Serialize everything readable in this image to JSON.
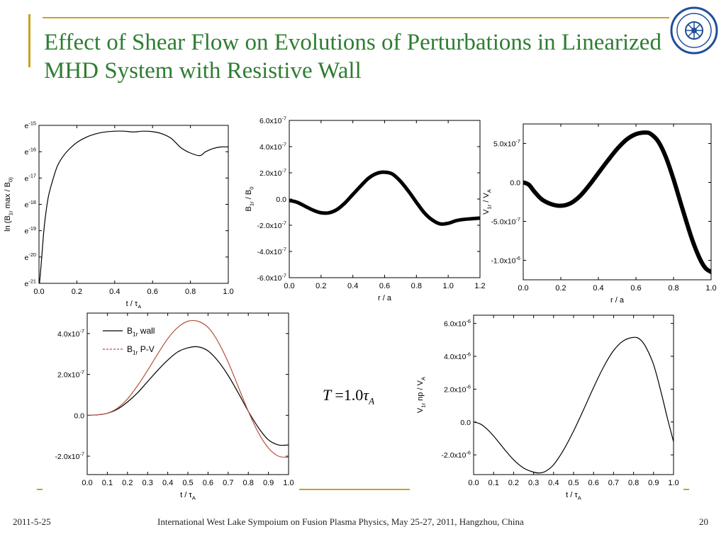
{
  "slide": {
    "title": "Effect of Shear Flow on Evolutions of Perturbations in Linearized MHD System with Resistive Wall",
    "formula": {
      "lhs": "T",
      "eq": "=1.0",
      "tau": "τ",
      "sub": "A"
    },
    "footer": {
      "date": "2011-5-25",
      "conference": "International West Lake Sympoium on Fusion Plasma Physics, May 25-27, 2011, Hangzhou, China",
      "page": "20"
    },
    "colors": {
      "title": "#2e7d32",
      "accent": "#c9a227",
      "curve": "#000000",
      "curve2": "#b5523f"
    },
    "logo_icon": "university-seal-icon"
  },
  "chart_data": [
    {
      "type": "line",
      "xlabel": "t / τ_A",
      "ylabel": "ln (B_1r max / B_0)",
      "xlim": [
        0,
        1.0
      ],
      "ylim": [
        -21,
        -15
      ],
      "ylog_e": true,
      "xticks": [
        "0.0",
        "0.2",
        "0.4",
        "0.6",
        "0.8",
        "1.0"
      ],
      "yticks": [
        "e^-15",
        "e^-16",
        "e^-17",
        "e^-18",
        "e^-19",
        "e^-20",
        "e^-21"
      ],
      "series": [
        {
          "x": [
            0.0,
            0.01,
            0.02,
            0.03,
            0.05,
            0.08,
            0.1,
            0.13,
            0.16,
            0.2,
            0.25,
            0.3,
            0.35,
            0.4,
            0.45,
            0.5,
            0.55,
            0.6,
            0.65,
            0.7,
            0.75,
            0.8,
            0.85,
            0.88,
            0.92,
            0.96,
            1.0
          ],
          "values": [
            -21.2,
            -20.4,
            -19.5,
            -18.7,
            -17.7,
            -16.9,
            -16.5,
            -16.15,
            -15.9,
            -15.65,
            -15.45,
            -15.32,
            -15.25,
            -15.22,
            -15.22,
            -15.25,
            -15.22,
            -15.24,
            -15.32,
            -15.5,
            -15.85,
            -16.05,
            -16.15,
            -16.0,
            -15.88,
            -15.82,
            -15.82
          ],
          "linewidth": "thin"
        }
      ]
    },
    {
      "type": "line",
      "xlabel": "r / a",
      "ylabel": "B_1r / B_0",
      "xlim": [
        0,
        1.2
      ],
      "ylim": [
        -6e-07,
        6e-07
      ],
      "xticks": [
        "0.0",
        "0.2",
        "0.4",
        "0.6",
        "0.8",
        "1.0",
        "1.2"
      ],
      "yticks": [
        "6.0x10^-7",
        "4.0x10^-7",
        "2.0x10^-7",
        "0.0",
        "-2.0x10^-7",
        "-4.0x10^-7",
        "-6.0x10^-7"
      ],
      "series": [
        {
          "x": [
            0.0,
            0.05,
            0.1,
            0.15,
            0.2,
            0.25,
            0.3,
            0.35,
            0.4,
            0.45,
            0.5,
            0.55,
            0.6,
            0.65,
            0.7,
            0.75,
            0.8,
            0.85,
            0.9,
            0.95,
            1.0,
            1.05,
            1.1,
            1.15,
            1.2
          ],
          "values": [
            -1e-08,
            -2.5e-08,
            -5.5e-08,
            -8.5e-08,
            -1.05e-07,
            -1.05e-07,
            -8e-08,
            -3e-08,
            3.5e-08,
            1e-07,
            1.6e-07,
            1.95e-07,
            2.05e-07,
            1.9e-07,
            1.35e-07,
            6e-08,
            -2.5e-08,
            -1.05e-07,
            -1.6e-07,
            -1.9e-07,
            -1.85e-07,
            -1.65e-07,
            -1.55e-07,
            -1.5e-07,
            -1.45e-07
          ],
          "linewidth": "thick"
        }
      ]
    },
    {
      "type": "line",
      "xlabel": "r / a",
      "ylabel": "V_1r / V_A",
      "xlim": [
        0,
        1.0
      ],
      "ylim": [
        -1.25e-06,
        7.5e-07
      ],
      "xticks": [
        "0.0",
        "0.2",
        "0.4",
        "0.6",
        "0.8",
        "1.0"
      ],
      "yticks": [
        "5.0x10^-7",
        "0.0",
        "-5.0x10^-7",
        "-1.0x10^-6"
      ],
      "series": [
        {
          "x": [
            0.0,
            0.03,
            0.06,
            0.1,
            0.15,
            0.2,
            0.25,
            0.3,
            0.35,
            0.4,
            0.45,
            0.5,
            0.55,
            0.6,
            0.65,
            0.68,
            0.72,
            0.76,
            0.8,
            0.85,
            0.9,
            0.94,
            0.97,
            1.0
          ],
          "values": [
            0.0,
            -3e-08,
            -1.2e-07,
            -2.2e-07,
            -2.8e-07,
            -3e-07,
            -2.7e-07,
            -1.8e-07,
            -4e-08,
            1.2e-07,
            2.8e-07,
            4.3e-07,
            5.5e-07,
            6.2e-07,
            6.4e-07,
            6.2e-07,
            5.2e-07,
            3.2e-07,
            4e-08,
            -3.6e-07,
            -7.4e-07,
            -9.8e-07,
            -1.1e-06,
            -1.15e-06
          ],
          "linewidth": "thick"
        }
      ]
    },
    {
      "type": "line",
      "xlabel": "t / τ_A",
      "xlim": [
        0,
        1.0
      ],
      "ylim": [
        -2.9e-07,
        5e-07
      ],
      "xticks": [
        "0.0",
        "0.1",
        "0.2",
        "0.3",
        "0.4",
        "0.5",
        "0.6",
        "0.7",
        "0.8",
        "0.9",
        "1.0"
      ],
      "yticks": [
        "4.0x10^-7",
        "2.0x10^-7",
        "0.0",
        "-2.0x10^-7"
      ],
      "legend": "top-left",
      "series": [
        {
          "name": "B_1r wall",
          "style": "solid",
          "color": "#000000",
          "x": [
            0.0,
            0.05,
            0.1,
            0.15,
            0.2,
            0.25,
            0.3,
            0.35,
            0.4,
            0.45,
            0.5,
            0.55,
            0.6,
            0.65,
            0.7,
            0.75,
            0.8,
            0.85,
            0.9,
            0.95,
            1.0
          ],
          "values": [
            0.0,
            2e-09,
            1e-08,
            3e-08,
            6.5e-08,
            1.1e-07,
            1.65e-07,
            2.2e-07,
            2.7e-07,
            3.1e-07,
            3.3e-07,
            3.35e-07,
            3.15e-07,
            2.65e-07,
            1.95e-07,
            1.1e-07,
            2e-08,
            -6e-08,
            -1.2e-07,
            -1.45e-07,
            -1.45e-07
          ]
        },
        {
          "name": "B_1r P-V",
          "style": "dashed",
          "color": "#b5523f",
          "x": [
            0.0,
            0.05,
            0.1,
            0.15,
            0.2,
            0.25,
            0.3,
            0.35,
            0.4,
            0.45,
            0.5,
            0.55,
            0.6,
            0.65,
            0.7,
            0.75,
            0.8,
            0.85,
            0.9,
            0.95,
            1.0
          ],
          "values": [
            0.0,
            2e-09,
            1e-08,
            3.5e-08,
            8e-08,
            1.45e-07,
            2.2e-07,
            3e-07,
            3.75e-07,
            4.3e-07,
            4.6e-07,
            4.6e-07,
            4.3e-07,
            3.6e-07,
            2.6e-07,
            1.4e-07,
            2e-08,
            -8.5e-08,
            -1.6e-07,
            -2e-07,
            -2.05e-07
          ]
        }
      ]
    },
    {
      "type": "line",
      "xlabel": "t / τ_A",
      "ylabel": "V_1r np / V_A",
      "xlim": [
        0,
        1.0
      ],
      "ylim": [
        -3.2e-06,
        6.5e-06
      ],
      "xticks": [
        "0.0",
        "0.1",
        "0.2",
        "0.3",
        "0.4",
        "0.5",
        "0.6",
        "0.7",
        "0.8",
        "0.9",
        "1.0"
      ],
      "yticks": [
        "6.0x10^-6",
        "4.0x10^-6",
        "2.0x10^-6",
        "0.0",
        "-2.0x10^-6"
      ],
      "series": [
        {
          "x": [
            0.0,
            0.03,
            0.06,
            0.1,
            0.15,
            0.2,
            0.25,
            0.3,
            0.33,
            0.36,
            0.4,
            0.45,
            0.5,
            0.55,
            0.6,
            0.65,
            0.7,
            0.75,
            0.8,
            0.83,
            0.86,
            0.9,
            0.94,
            0.97,
            1.0
          ],
          "values": [
            0.0,
            -1e-07,
            -3.5e-07,
            -8.5e-07,
            -1.6e-06,
            -2.3e-06,
            -2.8e-06,
            -3.05e-06,
            -3.1e-06,
            -3e-06,
            -2.6e-06,
            -1.7e-06,
            -5.5e-07,
            7.5e-07,
            2.1e-06,
            3.35e-06,
            4.35e-06,
            4.95e-06,
            5.15e-06,
            5.05e-06,
            4.6e-06,
            3.5e-06,
            1.7e-06,
            2e-07,
            -1.2e-06
          ],
          "linewidth": "thin"
        }
      ]
    }
  ]
}
